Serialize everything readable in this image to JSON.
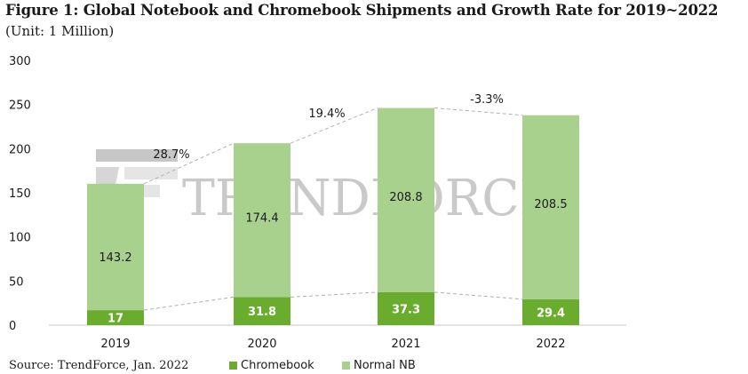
{
  "header": {
    "title": "Figure 1: Global Notebook and Chromebook Shipments and Growth Rate for 2019~2022",
    "unit": "(Unit: 1 Million)"
  },
  "footer": {
    "source": "Source: TrendForce, Jan. 2022"
  },
  "watermark": {
    "text": "TRENDFORCE"
  },
  "colors": {
    "chromebook": "#6aac2e",
    "normal_nb": "#a9d18e",
    "connector": "#b0b0b0"
  },
  "chart_data": {
    "type": "bar",
    "stacked": true,
    "categories": [
      "2019",
      "2020",
      "2021",
      "2022"
    ],
    "series": [
      {
        "name": "Chromebook",
        "values": [
          17,
          31.8,
          37.3,
          29.4
        ],
        "labels": [
          "17",
          "31.8",
          "37.3",
          "29.4"
        ]
      },
      {
        "name": "Normal NB",
        "values": [
          143.2,
          174.4,
          208.8,
          208.5
        ],
        "labels": [
          "143.2",
          "174.4",
          "208.8",
          "208.5"
        ]
      }
    ],
    "growth_rates": [
      "28.7%",
      "19.4%",
      "-3.3%"
    ],
    "yticks": [
      "0",
      "50",
      "100",
      "150",
      "200",
      "250",
      "300"
    ],
    "ylim": [
      0,
      300
    ],
    "legend_position": "bottom",
    "grid": false
  }
}
